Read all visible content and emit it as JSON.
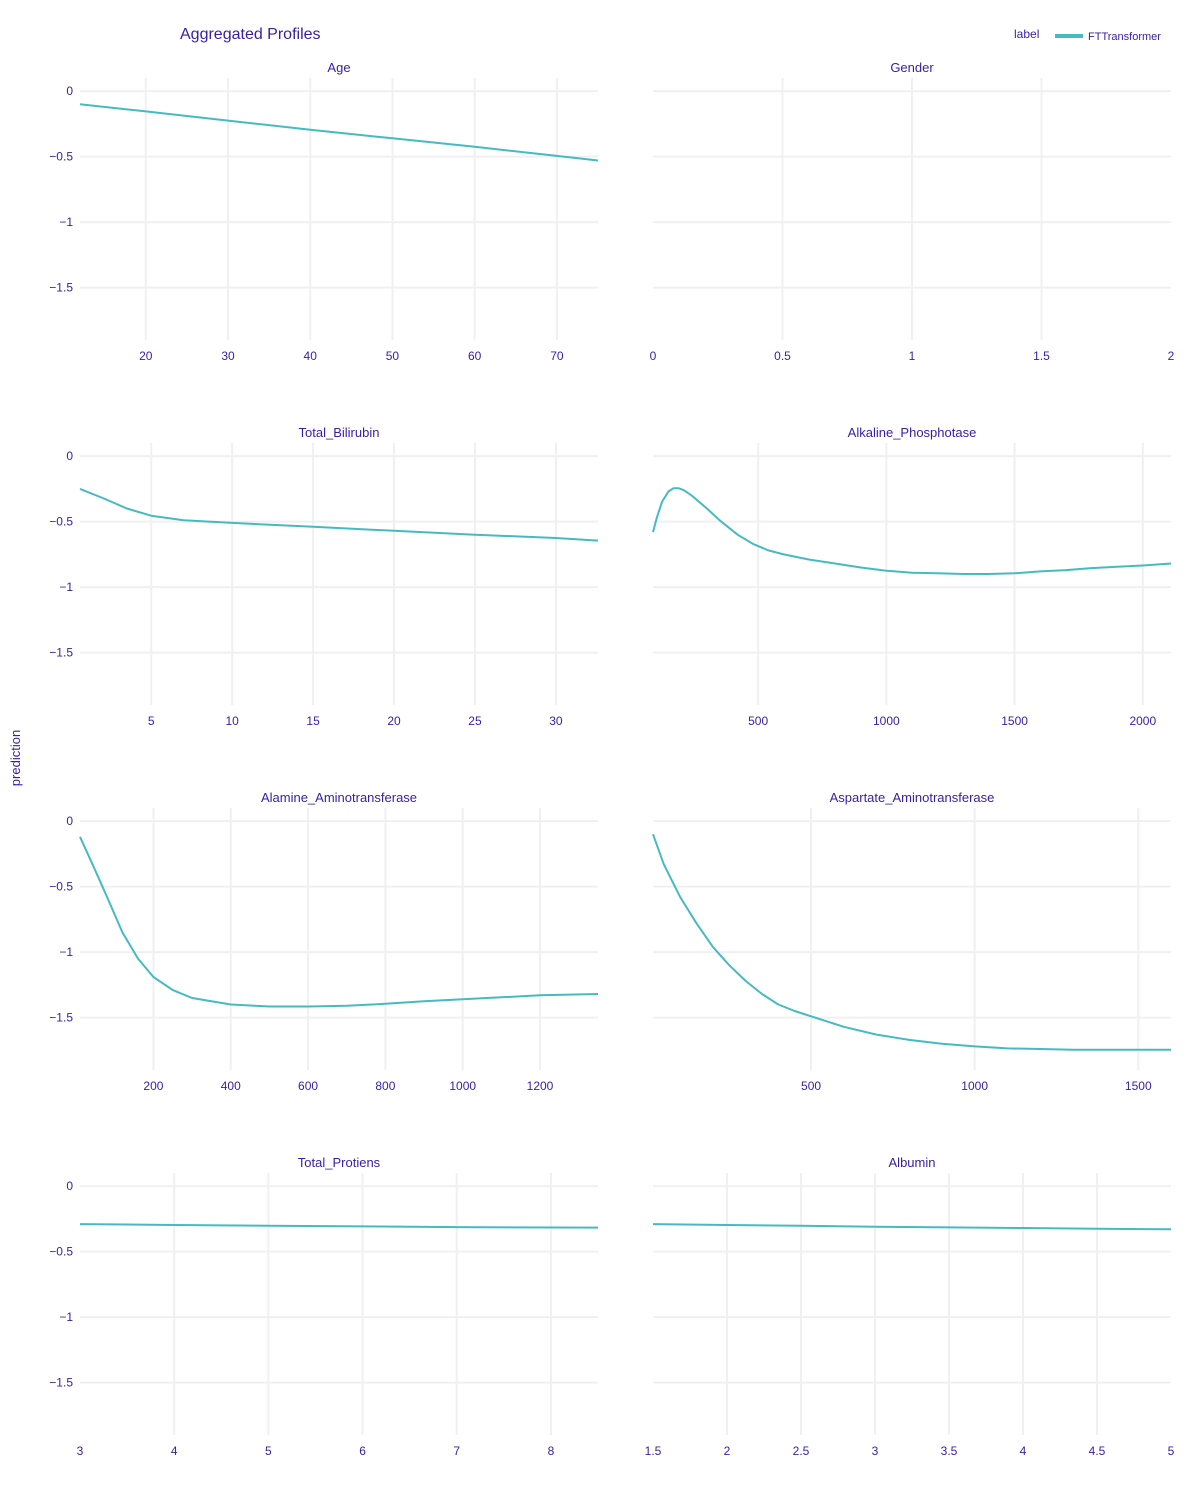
{
  "title": "Aggregated Profiles",
  "y_label": "prediction",
  "legend": {
    "title": "label",
    "items": [
      {
        "name": "FTTransformer",
        "color": "#46bac2"
      }
    ],
    "placement": "top-right"
  },
  "colors": {
    "line": "#46bac2",
    "text": "#371ea3",
    "grid": "#f0f0f4"
  },
  "chart_data": [
    {
      "type": "line",
      "title": "Age",
      "xlim": [
        12,
        75
      ],
      "ylim": [
        -1.9,
        0.1
      ],
      "xticks": [
        20,
        30,
        40,
        50,
        60,
        70
      ],
      "xtick_labels": [
        "20",
        "30",
        "40",
        "50",
        "60",
        "70"
      ],
      "yticks": [
        0,
        -0.5,
        -1,
        -1.5
      ],
      "ytick_labels": [
        "0",
        "−0.5",
        "−1",
        "−1.5"
      ],
      "series": [
        {
          "name": "FTTransformer",
          "x": [
            12,
            20,
            30,
            40,
            50,
            60,
            70,
            75
          ],
          "y": [
            -0.1,
            -0.155,
            -0.225,
            -0.295,
            -0.36,
            -0.425,
            -0.495,
            -0.53
          ]
        }
      ]
    },
    {
      "type": "line",
      "title": "Gender",
      "xlim": [
        0,
        2
      ],
      "ylim": [
        -1.9,
        0.1
      ],
      "xticks": [
        0,
        0.5,
        1,
        1.5,
        2
      ],
      "xtick_labels": [
        "0",
        "0.5",
        "1",
        "1.5",
        "2"
      ],
      "yticks": [
        0,
        -0.5,
        -1,
        -1.5
      ],
      "ytick_labels": [
        "",
        "",
        "",
        ""
      ],
      "series": []
    },
    {
      "type": "line",
      "title": "Total_Bilirubin",
      "xlim": [
        0.6,
        32.6
      ],
      "ylim": [
        -1.9,
        0.1
      ],
      "xticks": [
        5,
        10,
        15,
        20,
        25,
        30
      ],
      "xtick_labels": [
        "5",
        "10",
        "15",
        "20",
        "25",
        "30"
      ],
      "yticks": [
        0,
        -0.5,
        -1,
        -1.5
      ],
      "ytick_labels": [
        "0",
        "−0.5",
        "−1",
        "−1.5"
      ],
      "series": [
        {
          "name": "FTTransformer",
          "x": [
            0.6,
            2,
            3.5,
            5,
            7,
            10,
            15,
            20,
            25,
            30,
            32.6
          ],
          "y": [
            -0.25,
            -0.32,
            -0.4,
            -0.455,
            -0.49,
            -0.51,
            -0.54,
            -0.57,
            -0.6,
            -0.625,
            -0.645
          ]
        }
      ]
    },
    {
      "type": "line",
      "title": "Alkaline_Phosphotase",
      "xlim": [
        90,
        2110
      ],
      "ylim": [
        -1.9,
        0.1
      ],
      "xticks": [
        500,
        1000,
        1500,
        2000
      ],
      "xtick_labels": [
        "500",
        "1000",
        "1500",
        "2000"
      ],
      "yticks": [
        0,
        -0.5,
        -1,
        -1.5
      ],
      "ytick_labels": [
        "",
        "",
        "",
        ""
      ],
      "series": [
        {
          "name": "FTTransformer",
          "x": [
            90,
            105,
            125,
            150,
            170,
            190,
            210,
            240,
            300,
            350,
            420,
            480,
            540,
            600,
            700,
            800,
            900,
            1000,
            1100,
            1200,
            1300,
            1400,
            1500,
            1600,
            1700,
            1800,
            1900,
            2000,
            2110
          ],
          "y": [
            -0.58,
            -0.47,
            -0.35,
            -0.27,
            -0.245,
            -0.245,
            -0.26,
            -0.3,
            -0.4,
            -0.49,
            -0.6,
            -0.67,
            -0.72,
            -0.75,
            -0.79,
            -0.82,
            -0.85,
            -0.875,
            -0.89,
            -0.895,
            -0.9,
            -0.9,
            -0.895,
            -0.88,
            -0.87,
            -0.855,
            -0.845,
            -0.835,
            -0.82
          ]
        }
      ]
    },
    {
      "type": "line",
      "title": "Alamine_Aminotransferase",
      "xlim": [
        10,
        1350
      ],
      "ylim": [
        -1.9,
        0.1
      ],
      "xticks": [
        200,
        400,
        600,
        800,
        1000,
        1200
      ],
      "xtick_labels": [
        "200",
        "400",
        "600",
        "800",
        "1000",
        "1200"
      ],
      "yticks": [
        0,
        -0.5,
        -1,
        -1.5
      ],
      "ytick_labels": [
        "0",
        "−0.5",
        "−1",
        "−1.5"
      ],
      "series": [
        {
          "name": "FTTransformer",
          "x": [
            10,
            50,
            80,
            120,
            160,
            200,
            250,
            300,
            400,
            500,
            600,
            700,
            800,
            900,
            1000,
            1100,
            1200,
            1350
          ],
          "y": [
            -0.12,
            -0.38,
            -0.58,
            -0.85,
            -1.05,
            -1.19,
            -1.29,
            -1.35,
            -1.4,
            -1.415,
            -1.415,
            -1.41,
            -1.395,
            -1.375,
            -1.36,
            -1.345,
            -1.33,
            -1.32
          ]
        }
      ]
    },
    {
      "type": "line",
      "title": "Aspartate_Aminotransferase",
      "xlim": [
        17,
        1600
      ],
      "ylim": [
        -1.9,
        0.1
      ],
      "xticks": [
        500,
        1000,
        1500
      ],
      "xtick_labels": [
        "500",
        "1000",
        "1500"
      ],
      "yticks": [
        0,
        -0.5,
        -1,
        -1.5
      ],
      "ytick_labels": [
        "",
        "",
        "",
        ""
      ],
      "series": [
        {
          "name": "FTTransformer",
          "x": [
            17,
            50,
            100,
            150,
            200,
            250,
            300,
            350,
            400,
            450,
            500,
            600,
            700,
            800,
            900,
            1000,
            1100,
            1200,
            1300,
            1400,
            1500,
            1600
          ],
          "y": [
            -0.1,
            -0.33,
            -0.58,
            -0.78,
            -0.96,
            -1.1,
            -1.22,
            -1.32,
            -1.4,
            -1.45,
            -1.49,
            -1.57,
            -1.63,
            -1.67,
            -1.7,
            -1.72,
            -1.735,
            -1.74,
            -1.745,
            -1.745,
            -1.745,
            -1.745
          ]
        }
      ]
    },
    {
      "type": "line",
      "title": "Total_Protiens",
      "xlim": [
        3,
        8.5
      ],
      "ylim": [
        -1.9,
        0.1
      ],
      "xticks": [
        3,
        4,
        5,
        6,
        7,
        8
      ],
      "xtick_labels": [
        "3",
        "4",
        "5",
        "6",
        "7",
        "8"
      ],
      "yticks": [
        0,
        -0.5,
        -1,
        -1.5
      ],
      "ytick_labels": [
        "0",
        "−0.5",
        "−1",
        "−1.5"
      ],
      "series": [
        {
          "name": "FTTransformer",
          "x": [
            3,
            4,
            5,
            6,
            7,
            8,
            8.5
          ],
          "y": [
            -0.29,
            -0.297,
            -0.303,
            -0.308,
            -0.313,
            -0.316,
            -0.317
          ]
        }
      ]
    },
    {
      "type": "line",
      "title": "Albumin",
      "xlim": [
        1.5,
        5
      ],
      "ylim": [
        -1.9,
        0.1
      ],
      "xticks": [
        1.5,
        2,
        2.5,
        3,
        3.5,
        4,
        4.5,
        5
      ],
      "xtick_labels": [
        "1.5",
        "2",
        "2.5",
        "3",
        "3.5",
        "4",
        "4.5",
        "5"
      ],
      "yticks": [
        0,
        -0.5,
        -1,
        -1.5
      ],
      "ytick_labels": [
        "",
        "",
        "",
        ""
      ],
      "series": [
        {
          "name": "FTTransformer",
          "x": [
            1.5,
            2,
            2.5,
            3,
            3.5,
            4,
            4.5,
            5
          ],
          "y": [
            -0.29,
            -0.297,
            -0.303,
            -0.31,
            -0.315,
            -0.32,
            -0.325,
            -0.33
          ]
        }
      ]
    }
  ]
}
